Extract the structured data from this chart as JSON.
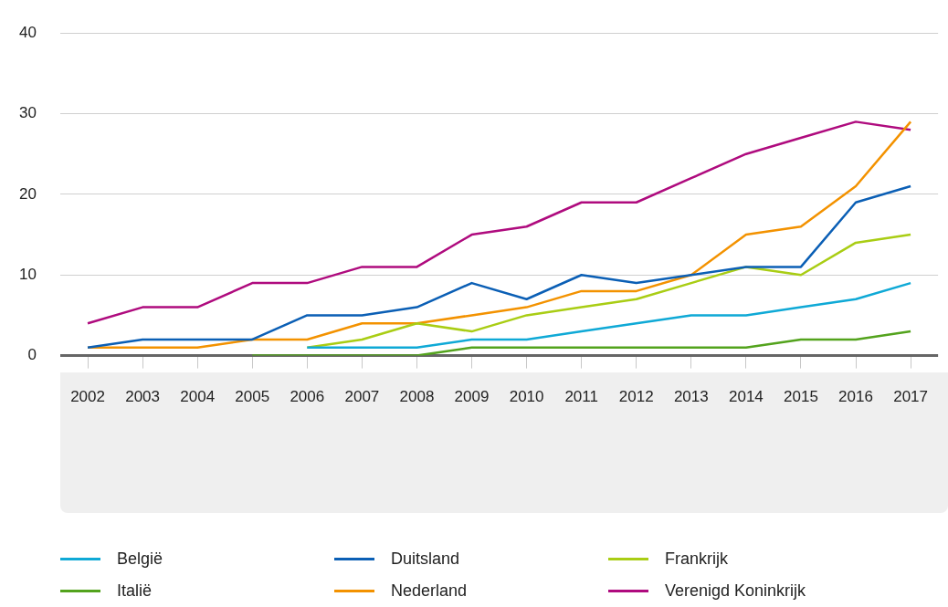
{
  "chart_data": {
    "type": "line",
    "categories": [
      "2002",
      "2003",
      "2004",
      "2005",
      "2006",
      "2007",
      "2008",
      "2009",
      "2010",
      "2011",
      "2012",
      "2013",
      "2014",
      "2015",
      "2016",
      "2017"
    ],
    "ylim": [
      0,
      40
    ],
    "yticks": [
      0,
      10,
      20,
      30,
      40
    ],
    "grid": "y",
    "legend": "bottom",
    "marker": "none",
    "line_style": "solid",
    "series": [
      {
        "name": "België",
        "color": "#0fa9d6",
        "values": [
          null,
          null,
          null,
          null,
          1,
          1,
          1,
          2,
          2,
          3,
          4,
          5,
          5,
          6,
          7,
          9
        ]
      },
      {
        "name": "Duitsland",
        "color": "#0b5fb5",
        "values": [
          1,
          2,
          2,
          2,
          5,
          5,
          6,
          9,
          7,
          10,
          9,
          10,
          11,
          11,
          19,
          21
        ]
      },
      {
        "name": "Frankrijk",
        "color": "#a9cd14",
        "values": [
          null,
          null,
          null,
          null,
          1,
          2,
          4,
          3,
          5,
          6,
          7,
          9,
          11,
          10,
          14,
          15
        ]
      },
      {
        "name": "Italië",
        "color": "#53a31d",
        "values": [
          null,
          null,
          null,
          0,
          0,
          0,
          0,
          1,
          1,
          1,
          1,
          1,
          1,
          2,
          2,
          3
        ]
      },
      {
        "name": "Nederland",
        "color": "#f39200",
        "values": [
          1,
          1,
          1,
          2,
          2,
          4,
          4,
          5,
          6,
          8,
          8,
          10,
          15,
          16,
          21,
          29
        ]
      },
      {
        "name": "Verenigd Koninkrijk",
        "color": "#af0b7e",
        "values": [
          4,
          6,
          6,
          9,
          9,
          11,
          11,
          15,
          16,
          19,
          19,
          22,
          25,
          27,
          29,
          28
        ]
      }
    ]
  }
}
